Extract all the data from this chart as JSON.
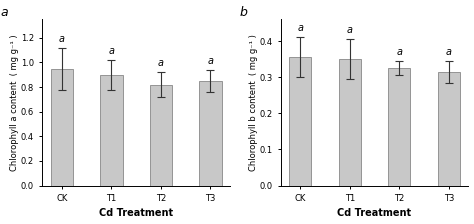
{
  "panel_a": {
    "label": "a",
    "categories": [
      "CK",
      "T1",
      "T2",
      "T3"
    ],
    "values": [
      0.95,
      0.9,
      0.82,
      0.85
    ],
    "errors": [
      0.17,
      0.12,
      0.1,
      0.09
    ],
    "ylabel": "Chlorophyll a content  ( mg g⁻¹ )",
    "xlabel": "Cd Treatment",
    "ylim": [
      0,
      1.35
    ],
    "yticks": [
      0.0,
      0.2,
      0.4,
      0.6,
      0.8,
      1.0,
      1.2
    ],
    "sig_labels": [
      "a",
      "a",
      "a",
      "a"
    ]
  },
  "panel_b": {
    "label": "b",
    "categories": [
      "CK",
      "T1",
      "T2",
      "T3"
    ],
    "values": [
      0.355,
      0.35,
      0.325,
      0.315
    ],
    "errors": [
      0.055,
      0.055,
      0.02,
      0.03
    ],
    "ylabel": "Chlorophyll b content  ( mg g⁻¹ )",
    "xlabel": "Cd Treatment",
    "ylim": [
      0,
      0.46
    ],
    "yticks": [
      0.0,
      0.1,
      0.2,
      0.3,
      0.4
    ],
    "sig_labels": [
      "a",
      "a",
      "a",
      "a"
    ]
  },
  "bar_color": "#c8c8c8",
  "bar_edgecolor": "#888888",
  "bar_width": 0.45,
  "error_capsize": 3,
  "error_color": "#333333",
  "error_linewidth": 0.8,
  "sig_fontsize": 7,
  "axis_label_fontsize": 6,
  "tick_fontsize": 6,
  "panel_label_fontsize": 9,
  "xlabel_fontsize": 7
}
